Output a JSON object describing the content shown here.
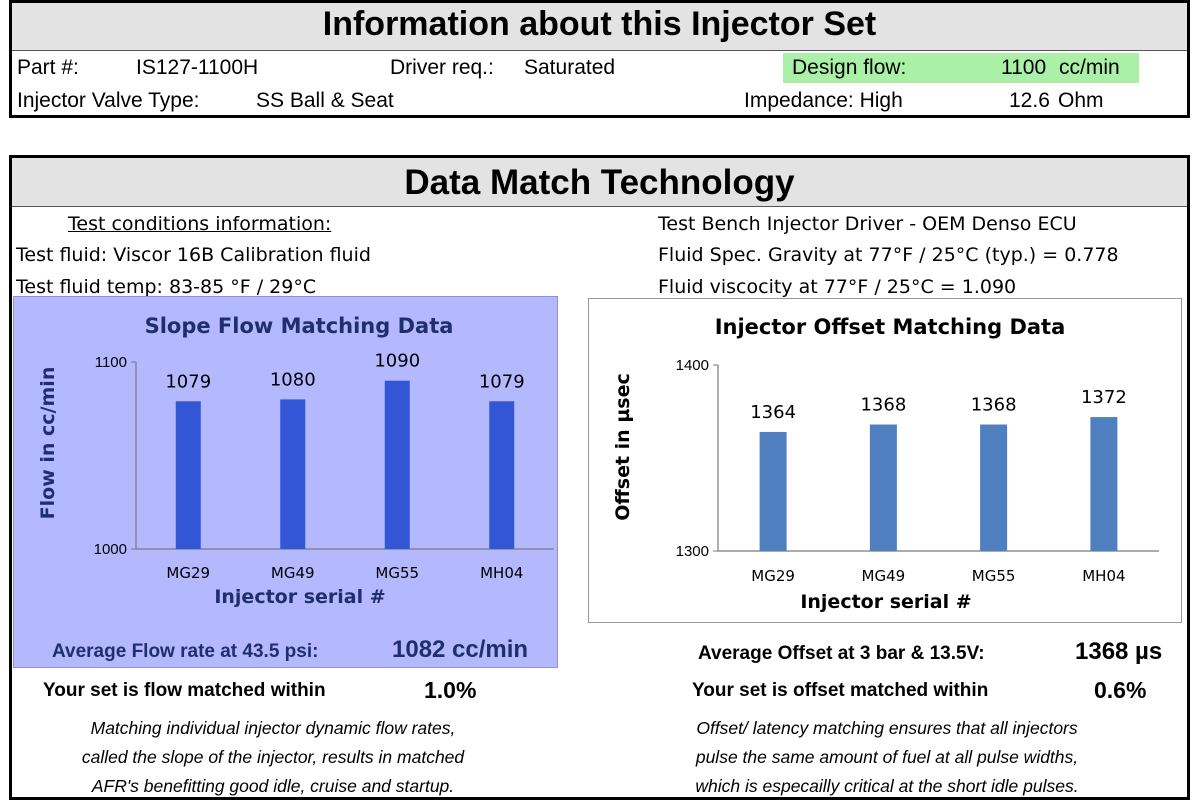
{
  "info": {
    "title": "Information about this Injector Set",
    "part_label": "Part #:",
    "part_value": "IS127-1100H",
    "driver_label": "Driver req.:",
    "driver_value": "Saturated",
    "design_flow_label": "Design flow:",
    "design_flow_value": "1100",
    "design_flow_unit": "cc/min",
    "valve_label": "Injector Valve Type:",
    "valve_value": "SS Ball & Seat",
    "impedance_label": "Impedance: High",
    "impedance_value": "12.6",
    "impedance_unit": "Ohm"
  },
  "dmt": {
    "title": "Data Match Technology",
    "test_conditions_heading": "Test conditions information:",
    "test_fluid": "Test fluid: Viscor 16B Calibration fluid",
    "test_temp": "Test fluid temp: 83-85 °F / 29°C",
    "bench_driver": "Test Bench Injector Driver - OEM Denso ECU",
    "gravity": "Fluid Spec. Gravity at 77°F / 25°C (typ.) = 0.778",
    "viscosity": "Fluid viscocity at 77°F / 25°C = 1.090"
  },
  "flow": {
    "avg_label": "Average Flow rate at 43.5 psi:",
    "avg_value": "1082 cc/min",
    "matched_label": "Your set is flow matched within",
    "matched_value": "1.0%",
    "desc_1": "Matching individual injector dynamic flow rates,",
    "desc_2": "called the slope of the injector, results in matched",
    "desc_3": "AFR's benefitting good idle, cruise and startup."
  },
  "offset": {
    "avg_label": "Average Offset at 3 bar & 13.5V:",
    "avg_value": "1368 µs",
    "matched_label": "Your set is offset matched within",
    "matched_value": "0.6%",
    "desc_1": "Offset/ latency matching ensures that all injectors",
    "desc_2": "pulse the same amount of fuel at all pulse widths,",
    "desc_3": "which is especailly critical at the short idle pulses."
  },
  "colors": {
    "flow_panel_bg": "#b4b8ff",
    "flow_bar": "#3356d6",
    "offset_bar": "#4f7fbf",
    "title_navy": "#1f2f6e",
    "design_flow_highlight": "#aaf0a6"
  },
  "chart_data": [
    {
      "type": "bar",
      "title": "Slope Flow Matching Data",
      "xlabel": "Injector serial #",
      "ylabel": "Flow in cc/min",
      "categories": [
        "MG29",
        "MG49",
        "MG55",
        "MH04"
      ],
      "values": [
        1079,
        1080,
        1090,
        1079
      ],
      "ylim": [
        1000,
        1100
      ],
      "yticks": [
        "1000",
        "1100"
      ],
      "grid": false,
      "legend": "none"
    },
    {
      "type": "bar",
      "title": "Injector Offset Matching Data",
      "xlabel": "Injector serial #",
      "ylabel": "Offset in µsec",
      "categories": [
        "MG29",
        "MG49",
        "MG55",
        "MH04"
      ],
      "values": [
        1364,
        1368,
        1368,
        1372
      ],
      "ylim": [
        1300,
        1400
      ],
      "yticks": [
        "1300",
        "1400"
      ],
      "grid": false,
      "legend": "none"
    }
  ]
}
